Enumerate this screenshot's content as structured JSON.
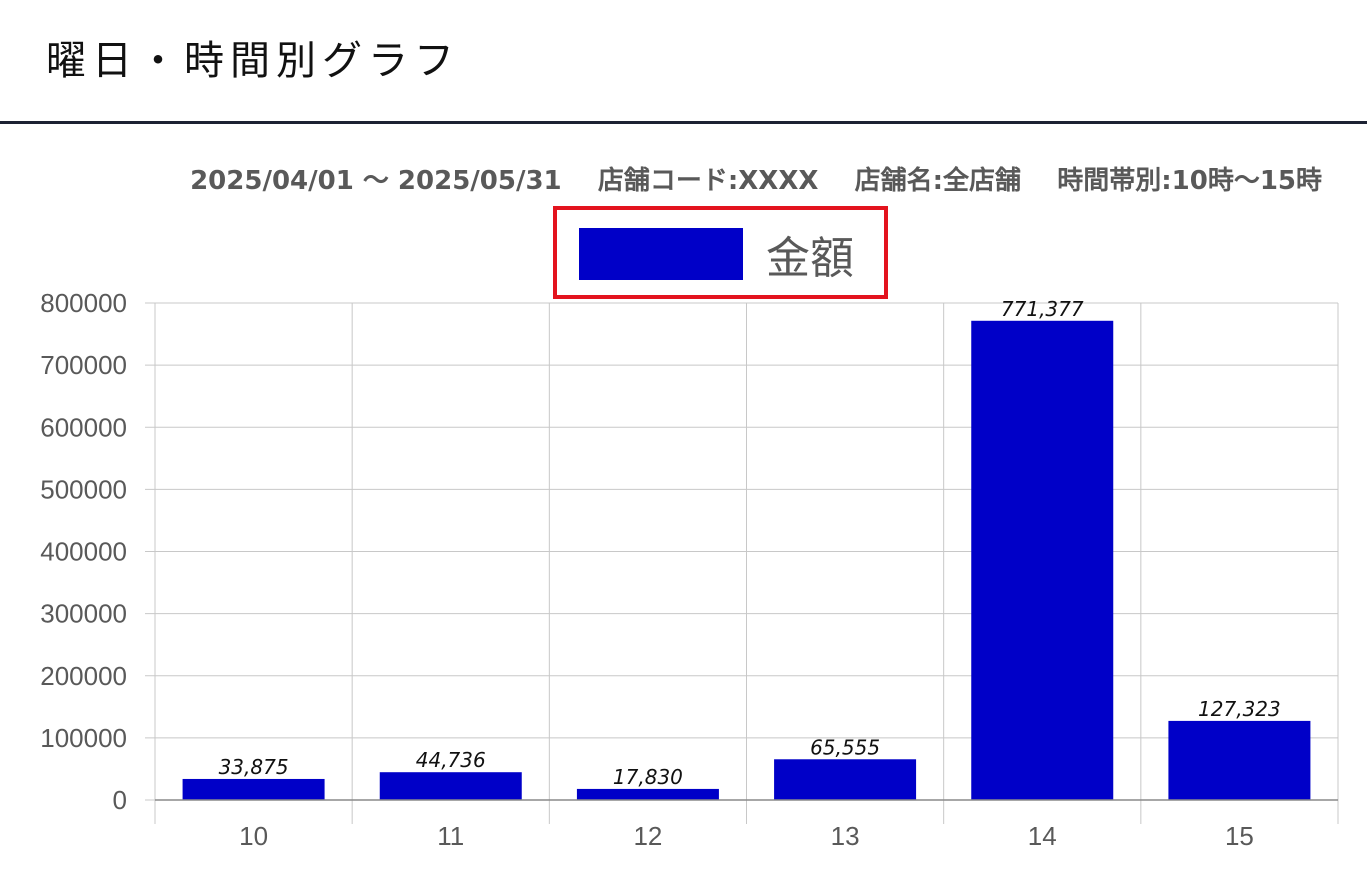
{
  "header": {
    "title": "曜日・時間別グラフ"
  },
  "chart_meta": {
    "subtitle": "2025/04/01 〜 2025/05/31    店舗コード:XXXX    店舗名:全店舗    時間帯別:10時〜15時"
  },
  "colors": {
    "bar": "#0000c8",
    "highlight_border": "#e3131e",
    "grid": "#c8c8c8",
    "header_rule": "#1c2233"
  },
  "chart_data": {
    "type": "bar",
    "categories": [
      "10",
      "11",
      "12",
      "13",
      "14",
      "15"
    ],
    "series": [
      {
        "name": "金額",
        "values": [
          33875,
          44736,
          17830,
          65555,
          771377,
          127323
        ],
        "labels": [
          "33,875",
          "44,736",
          "17,830",
          "65,555",
          "771,377",
          "127,323"
        ]
      }
    ],
    "y_ticks": [
      "0",
      "100000",
      "200000",
      "300000",
      "400000",
      "500000",
      "600000",
      "700000",
      "800000"
    ],
    "ylim": [
      0,
      800000
    ],
    "grid": true,
    "legend": "top-center"
  }
}
